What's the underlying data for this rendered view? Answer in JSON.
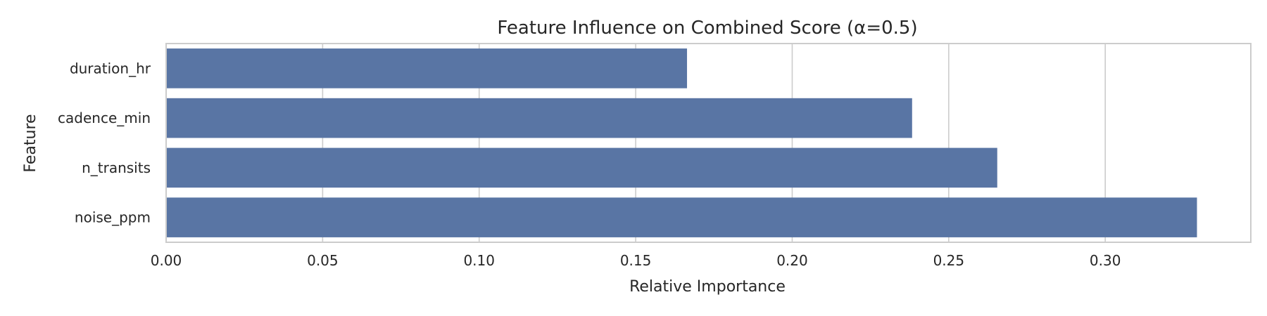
{
  "chart_data": {
    "type": "bar",
    "orientation": "horizontal",
    "title": "Feature Influence on Combined Score (α=0.5)",
    "xlabel": "Relative Importance",
    "ylabel": "Feature",
    "categories": [
      "duration_hr",
      "cadence_min",
      "n_transits",
      "noise_ppm"
    ],
    "values": [
      0.1664,
      0.2383,
      0.2655,
      0.3293
    ],
    "xlim": [
      0,
      0.3465
    ],
    "xticks": [
      0.0,
      0.05,
      0.1,
      0.15,
      0.2,
      0.25,
      0.3
    ],
    "xtick_labels": [
      "0.00",
      "0.05",
      "0.10",
      "0.15",
      "0.20",
      "0.25",
      "0.30"
    ],
    "grid": "vertical",
    "bar_color": "#5975a4"
  }
}
